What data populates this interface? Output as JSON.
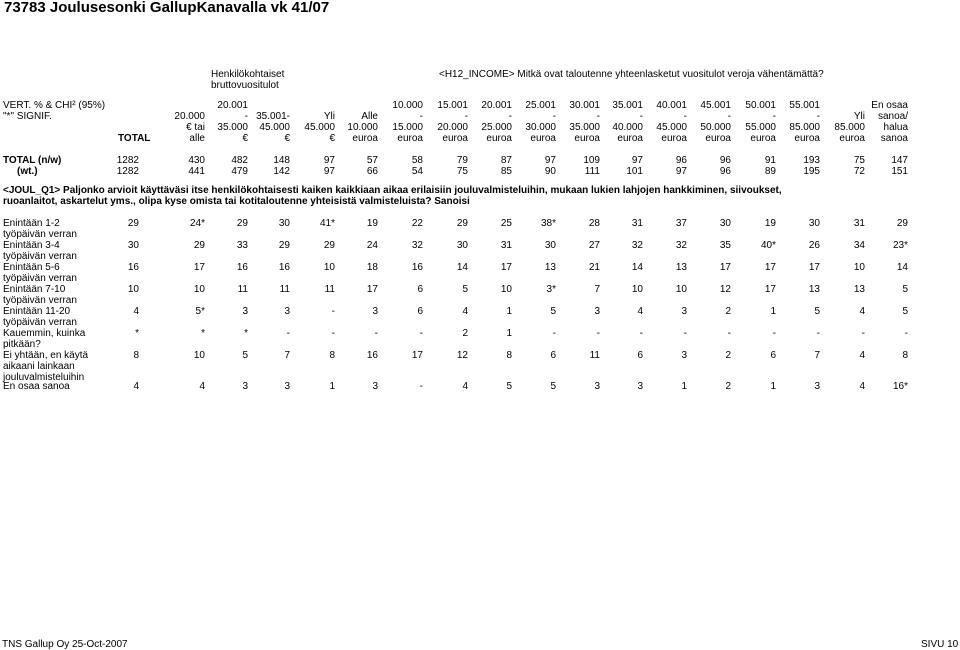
{
  "title": "73783 Joulusesonki GallupKanavalla vk 41/07",
  "banner": {
    "group1": [
      "Henkilökohtaiset",
      "bruttovuositulot"
    ],
    "group2": "<H12_INCOME> Mitkä ovat taloutenne yhteenlasketut vuositulot veroja vähentämättä?"
  },
  "header_left": [
    "VERT. % & CHI² (95%)",
    "\"*\" SIGNIF."
  ],
  "header_rows": [
    [
      "",
      "20.001",
      "",
      "",
      "",
      "10.000",
      "15.001",
      "20.001",
      "25.001",
      "30.001",
      "35.001",
      "40.001",
      "45.001",
      "50.001",
      "55.001",
      "",
      "En osaa"
    ],
    [
      "20.000",
      "-",
      "35.001-",
      "Yli",
      "Alle",
      "-",
      "-",
      "-",
      "-",
      "-",
      "-",
      "-",
      "-",
      "-",
      "-",
      "Yli",
      "sanoa/"
    ],
    [
      "€ tai",
      "35.000",
      "45.000",
      "45.000",
      "10.000",
      "15.000",
      "20.000",
      "25.000",
      "30.000",
      "35.000",
      "40.000",
      "45.000",
      "50.000",
      "55.000",
      "85.000",
      "85.000",
      "halua"
    ],
    [
      "alle",
      "€",
      "€",
      "€",
      "euroa",
      "euroa",
      "euroa",
      "euroa",
      "euroa",
      "euroa",
      "euroa",
      "euroa",
      "euroa",
      "euroa",
      "euroa",
      "euroa",
      "sanoa"
    ]
  ],
  "total_label": "TOTAL",
  "totals": [
    {
      "label": "TOTAL (n/w)",
      "values": [
        "1282",
        "430",
        "482",
        "148",
        "97",
        "57",
        "58",
        "79",
        "87",
        "97",
        "109",
        "97",
        "96",
        "96",
        "91",
        "193",
        "75",
        "147"
      ]
    },
    {
      "label": "(wt.)",
      "values": [
        "1282",
        "441",
        "479",
        "142",
        "97",
        "66",
        "54",
        "75",
        "85",
        "90",
        "111",
        "101",
        "97",
        "96",
        "89",
        "195",
        "72",
        "151"
      ]
    }
  ],
  "question": [
    "<JOUL_Q1> Paljonko arvioit käyttäväsi itse henkilökohtaisesti kaiken kaikkiaan aikaa erilaisiin jouluvalmisteluihin, mukaan lukien lahjojen hankkiminen, siivoukset,",
    "ruoanlaitot, askartelut yms., olipa kyse omista tai kotitaloutenne yhteisistä valmisteluista? Sanoisi"
  ],
  "rows": [
    {
      "label": [
        "Enintään 1-2",
        "työpäivän verran"
      ],
      "values": [
        "29",
        "24*",
        "29",
        "30",
        "41*",
        "19",
        "22",
        "29",
        "25",
        "38*",
        "28",
        "31",
        "37",
        "30",
        "19",
        "30",
        "31",
        "29"
      ]
    },
    {
      "label": [
        "Enintään 3-4",
        "työpäivän verran"
      ],
      "values": [
        "30",
        "29",
        "33",
        "29",
        "29",
        "24",
        "32",
        "30",
        "31",
        "30",
        "27",
        "32",
        "32",
        "35",
        "40*",
        "26",
        "34",
        "23*"
      ]
    },
    {
      "label": [
        "Enintään 5-6",
        "työpäivän verran"
      ],
      "values": [
        "16",
        "17",
        "16",
        "16",
        "10",
        "18",
        "16",
        "14",
        "17",
        "13",
        "21",
        "14",
        "13",
        "17",
        "17",
        "17",
        "10",
        "14"
      ]
    },
    {
      "label": [
        "Enintään 7-10",
        "työpäivän verran"
      ],
      "values": [
        "10",
        "10",
        "11",
        "11",
        "11",
        "17",
        "6",
        "5",
        "10",
        "3*",
        "7",
        "10",
        "10",
        "12",
        "17",
        "13",
        "13",
        "5"
      ]
    },
    {
      "label": [
        "Enintään 11-20",
        "työpäivän verran"
      ],
      "values": [
        "4",
        "5*",
        "3",
        "3",
        "-",
        "3",
        "6",
        "4",
        "1",
        "5",
        "3",
        "4",
        "3",
        "2",
        "1",
        "5",
        "4",
        "5"
      ]
    },
    {
      "label": [
        "Kauemmin, kuinka",
        "pitkään?"
      ],
      "values": [
        "*",
        "*",
        "*",
        "-",
        "-",
        "-",
        "-",
        "2",
        "1",
        "-",
        "-",
        "-",
        "-",
        "-",
        "-",
        "-",
        "-",
        "-"
      ]
    },
    {
      "label": [
        "Ei yhtään, en käytä",
        "aikaani lainkaan",
        "jouluvalmisteluihin"
      ],
      "values": [
        "8",
        "10",
        "5",
        "7",
        "8",
        "16",
        "17",
        "12",
        "8",
        "6",
        "11",
        "6",
        "3",
        "2",
        "6",
        "7",
        "4",
        "8"
      ]
    },
    {
      "label": [
        "En osaa sanoa"
      ],
      "values": [
        "4",
        "4",
        "3",
        "3",
        "1",
        "3",
        "-",
        "4",
        "5",
        "5",
        "3",
        "3",
        "1",
        "2",
        "1",
        "3",
        "4",
        "16*"
      ]
    }
  ],
  "footer": {
    "left": "TNS Gallup Oy 25-Oct-2007",
    "right": "SIVU 10"
  }
}
